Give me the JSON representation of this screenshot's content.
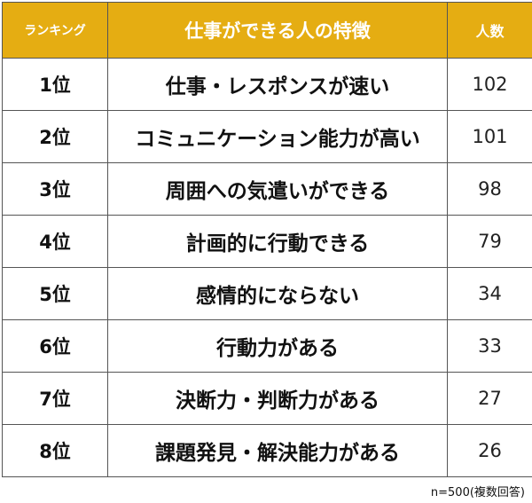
{
  "table": {
    "headers": {
      "rank": "ランキング",
      "trait": "仕事ができる人の特徴",
      "count": "人数"
    },
    "rows": [
      {
        "rank": "1位",
        "trait": "仕事・レスポンスが速い",
        "count": "102"
      },
      {
        "rank": "2位",
        "trait": "コミュニケーション能力が高い",
        "count": "101"
      },
      {
        "rank": "3位",
        "trait": "周囲への気遣いができる",
        "count": "98"
      },
      {
        "rank": "4位",
        "trait": "計画的に行動できる",
        "count": "79"
      },
      {
        "rank": "5位",
        "trait": "感情的にならない",
        "count": "34"
      },
      {
        "rank": "6位",
        "trait": "行動力がある",
        "count": "33"
      },
      {
        "rank": "7位",
        "trait": "決断力・判断力がある",
        "count": "27"
      },
      {
        "rank": "8位",
        "trait": "課題発見・解決能力がある",
        "count": "26"
      }
    ]
  },
  "footnote": "n=500(複数回答)",
  "colors": {
    "header_background": "#e5ad12",
    "header_text": "#ffffff",
    "border": "#555555"
  }
}
